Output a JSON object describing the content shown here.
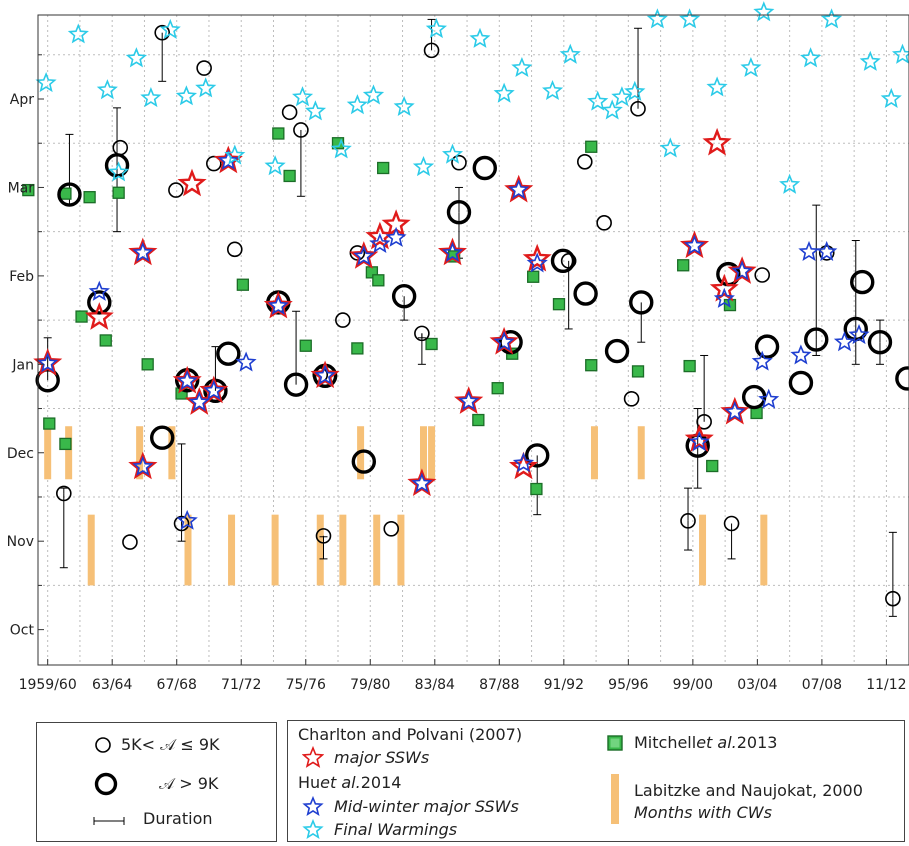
{
  "chart_data": {
    "type": "scatter",
    "title": "",
    "xlabel": "",
    "ylabel": "",
    "x_tick_labels": [
      "1959/60",
      "63/64",
      "67/68",
      "71/72",
      "75/76",
      "79/80",
      "83/84",
      "87/88",
      "91/92",
      "95/96",
      "99/00",
      "03/04",
      "07/08",
      "11/12"
    ],
    "x_tick_years": [
      1960,
      1964,
      1968,
      1972,
      1976,
      1980,
      1984,
      1988,
      1992,
      1996,
      2000,
      2004,
      2008,
      2012
    ],
    "y_tick_labels": [
      "Oct",
      "Nov",
      "Dec",
      "Jan",
      "Feb",
      "Mar",
      "Apr"
    ],
    "y_tick_months": [
      0,
      1,
      2,
      3,
      4,
      5,
      6
    ],
    "xlim": [
      1959.4,
      2013.4
    ],
    "ylim": [
      -0.4,
      6.95
    ],
    "grid": true,
    "y_units": "months since 1 Oct",
    "series": [
      {
        "name": "5K< 𝒜 ≤ 9K",
        "marker": "circle-thin",
        "points": [
          {
            "x": 1961,
            "y": 1.54,
            "lo": 0.7,
            "hi": 1.6
          },
          {
            "x": 1964.5,
            "y": 5.45
          },
          {
            "x": 1965.1,
            "y": 0.99
          },
          {
            "x": 1967.1,
            "y": 6.75,
            "hi": 6.2
          },
          {
            "x": 1967.95,
            "y": 4.97
          },
          {
            "x": 1968.3,
            "y": 1.2,
            "lo": 1.0,
            "hi": 2.1
          },
          {
            "x": 1969.7,
            "y": 6.35
          },
          {
            "x": 1970.3,
            "y": 5.27
          },
          {
            "x": 1971.6,
            "y": 4.3
          },
          {
            "x": 1975,
            "y": 5.85
          },
          {
            "x": 1975.7,
            "y": 5.65,
            "lo": 4.9
          },
          {
            "x": 1976.9,
            "y": 2.88
          },
          {
            "x": 1977.1,
            "y": 1.06,
            "lo": 0.8,
            "hi": 1.05
          },
          {
            "x": 1978.3,
            "y": 3.5
          },
          {
            "x": 1979.2,
            "y": 4.26
          },
          {
            "x": 1981.3,
            "y": 1.14
          },
          {
            "x": 1983.2,
            "y": 3.35,
            "lo": 3.0,
            "hi": 3.3
          },
          {
            "x": 1983.8,
            "y": 6.55,
            "hi": 6.9
          },
          {
            "x": 1985.5,
            "y": 5.28
          },
          {
            "x": 1992.3,
            "y": 4.17,
            "lo": 3.4
          },
          {
            "x": 1993.3,
            "y": 5.29
          },
          {
            "x": 1994.5,
            "y": 4.6
          },
          {
            "x": 1996.2,
            "y": 2.61
          },
          {
            "x": 1996.6,
            "y": 5.89,
            "hi": 6.8
          },
          {
            "x": 1999.7,
            "y": 1.23,
            "lo": 0.9,
            "hi": 1.6
          },
          {
            "x": 2000.7,
            "y": 2.35,
            "hi": 3.1
          },
          {
            "x": 2002.4,
            "y": 1.2,
            "lo": 0.8
          },
          {
            "x": 2004.3,
            "y": 4.01
          },
          {
            "x": 2008.3,
            "y": 4.26
          },
          {
            "x": 2012.4,
            "y": 0.35,
            "lo": 0.15,
            "hi": 1.1
          }
        ]
      },
      {
        "name": "𝒜 > 9K",
        "marker": "circle-thick",
        "points": [
          {
            "x": 1960,
            "y": 2.82,
            "hi": 3.3
          },
          {
            "x": 1961.35,
            "y": 4.92,
            "lo": 4.8,
            "hi": 5.6
          },
          {
            "x": 1963.2,
            "y": 3.7
          },
          {
            "x": 1964.3,
            "y": 5.25,
            "lo": 4.5,
            "hi": 5.9
          },
          {
            "x": 1967.1,
            "y": 2.17
          },
          {
            "x": 1968.65,
            "y": 2.82
          },
          {
            "x": 1970.4,
            "y": 2.7,
            "hi": 3.2
          },
          {
            "x": 1971.2,
            "y": 3.12
          },
          {
            "x": 1974.3,
            "y": 3.7
          },
          {
            "x": 1975.4,
            "y": 2.77,
            "hi": 3.6
          },
          {
            "x": 1977.2,
            "y": 2.87
          },
          {
            "x": 1979.6,
            "y": 1.9
          },
          {
            "x": 1982.1,
            "y": 3.77,
            "hi": 3.5
          },
          {
            "x": 1985.5,
            "y": 4.72,
            "lo": 4.2,
            "hi": 5.0
          },
          {
            "x": 1987.1,
            "y": 5.22
          },
          {
            "x": 1988.7,
            "y": 3.25
          },
          {
            "x": 1990.35,
            "y": 1.97,
            "lo": 1.3
          },
          {
            "x": 1991.95,
            "y": 4.17
          },
          {
            "x": 1993.35,
            "y": 3.8
          },
          {
            "x": 1995.3,
            "y": 3.15
          },
          {
            "x": 1996.8,
            "y": 3.7,
            "lo": 3.25
          },
          {
            "x": 2000.3,
            "y": 2.08,
            "lo": 1.6,
            "hi": 2.5
          },
          {
            "x": 2002.2,
            "y": 4.02
          },
          {
            "x": 2003.8,
            "y": 2.63
          },
          {
            "x": 2004.6,
            "y": 3.2
          },
          {
            "x": 2006.7,
            "y": 2.79
          },
          {
            "x": 2007.65,
            "y": 3.28,
            "lo": 3.1,
            "hi": 4.8
          },
          {
            "x": 2010.1,
            "y": 3.4,
            "lo": 3.0,
            "hi": 4.4
          },
          {
            "x": 2010.5,
            "y": 3.93
          },
          {
            "x": 2011.6,
            "y": 3.25,
            "lo": 3.0,
            "hi": 3.5
          },
          {
            "x": 2013.3,
            "y": 2.84
          }
        ]
      },
      {
        "name": "major SSWs",
        "marker": "star-red",
        "points": [
          {
            "x": 1960,
            "y": 3.01
          },
          {
            "x": 1963.2,
            "y": 3.53
          },
          {
            "x": 1965.9,
            "y": 4.26
          },
          {
            "x": 1965.9,
            "y": 1.84
          },
          {
            "x": 1968.65,
            "y": 2.81
          },
          {
            "x": 1968.95,
            "y": 5.04
          },
          {
            "x": 1969.4,
            "y": 2.57
          },
          {
            "x": 1970.3,
            "y": 2.7
          },
          {
            "x": 1971.2,
            "y": 5.3
          },
          {
            "x": 1974.3,
            "y": 3.66
          },
          {
            "x": 1977.2,
            "y": 2.87
          },
          {
            "x": 1979.6,
            "y": 4.22
          },
          {
            "x": 1980.6,
            "y": 4.44
          },
          {
            "x": 1981.6,
            "y": 4.58
          },
          {
            "x": 1983.2,
            "y": 1.65
          },
          {
            "x": 1985.1,
            "y": 4.26
          },
          {
            "x": 1986.1,
            "y": 2.58
          },
          {
            "x": 1988.3,
            "y": 3.25
          },
          {
            "x": 1989.2,
            "y": 4.97
          },
          {
            "x": 1989.5,
            "y": 1.84
          },
          {
            "x": 1990.35,
            "y": 4.19
          },
          {
            "x": 2000.1,
            "y": 4.34
          },
          {
            "x": 2000.4,
            "y": 2.15
          },
          {
            "x": 2001.95,
            "y": 3.85
          },
          {
            "x": 2002.6,
            "y": 2.46
          },
          {
            "x": 2003.05,
            "y": 4.05
          },
          {
            "x": 2001.5,
            "y": 5.5
          }
        ]
      },
      {
        "name": "Mid-winter major SSWs",
        "marker": "star-blue",
        "points": [
          {
            "x": 1960,
            "y": 3.01
          },
          {
            "x": 1963.2,
            "y": 3.82
          },
          {
            "x": 1965.9,
            "y": 4.26
          },
          {
            "x": 1965.9,
            "y": 1.84
          },
          {
            "x": 1968.65,
            "y": 2.81
          },
          {
            "x": 1968.65,
            "y": 1.23
          },
          {
            "x": 1969.4,
            "y": 2.57
          },
          {
            "x": 1970.3,
            "y": 2.7
          },
          {
            "x": 1971.2,
            "y": 5.3
          },
          {
            "x": 1972.3,
            "y": 3.02
          },
          {
            "x": 1974.3,
            "y": 3.66
          },
          {
            "x": 1977.2,
            "y": 2.87
          },
          {
            "x": 1979.6,
            "y": 4.22
          },
          {
            "x": 1980.6,
            "y": 4.36
          },
          {
            "x": 1981.6,
            "y": 4.43
          },
          {
            "x": 1983.2,
            "y": 1.65
          },
          {
            "x": 1985.1,
            "y": 4.26
          },
          {
            "x": 1986.1,
            "y": 2.58
          },
          {
            "x": 1988.3,
            "y": 3.25
          },
          {
            "x": 1989.2,
            "y": 4.97
          },
          {
            "x": 1989.5,
            "y": 1.88
          },
          {
            "x": 1990.35,
            "y": 4.14
          },
          {
            "x": 2000.1,
            "y": 4.34
          },
          {
            "x": 2000.4,
            "y": 2.12
          },
          {
            "x": 2001.95,
            "y": 3.74
          },
          {
            "x": 2002.6,
            "y": 2.46
          },
          {
            "x": 2003.05,
            "y": 4.05
          },
          {
            "x": 2004.3,
            "y": 3.03
          },
          {
            "x": 2004.7,
            "y": 2.6
          },
          {
            "x": 2006.7,
            "y": 3.1
          },
          {
            "x": 2007.2,
            "y": 4.27
          },
          {
            "x": 2008.3,
            "y": 4.27
          },
          {
            "x": 2009.4,
            "y": 3.25
          },
          {
            "x": 2010.3,
            "y": 3.33
          }
        ]
      },
      {
        "name": "Final Warmings",
        "marker": "star-cyan",
        "points": [
          {
            "x": 1959.9,
            "y": 6.18
          },
          {
            "x": 1961.9,
            "y": 6.73
          },
          {
            "x": 1963.7,
            "y": 6.1
          },
          {
            "x": 1964.4,
            "y": 5.17
          },
          {
            "x": 1965.5,
            "y": 6.46
          },
          {
            "x": 1966.4,
            "y": 6.01
          },
          {
            "x": 1967.6,
            "y": 6.78
          },
          {
            "x": 1968.6,
            "y": 6.03
          },
          {
            "x": 1969.8,
            "y": 6.12
          },
          {
            "x": 1971.6,
            "y": 5.36
          },
          {
            "x": 1974.1,
            "y": 5.24
          },
          {
            "x": 1975.8,
            "y": 6.02
          },
          {
            "x": 1976.6,
            "y": 5.86
          },
          {
            "x": 1978.2,
            "y": 5.43
          },
          {
            "x": 1979.2,
            "y": 5.93
          },
          {
            "x": 1980.2,
            "y": 6.04
          },
          {
            "x": 1982.1,
            "y": 5.91
          },
          {
            "x": 1983.3,
            "y": 5.23
          },
          {
            "x": 1984.1,
            "y": 6.79
          },
          {
            "x": 1985.1,
            "y": 5.37
          },
          {
            "x": 1986.8,
            "y": 6.68
          },
          {
            "x": 1988.3,
            "y": 6.06
          },
          {
            "x": 1989.4,
            "y": 6.35
          },
          {
            "x": 1991.3,
            "y": 6.09
          },
          {
            "x": 1992.4,
            "y": 6.5
          },
          {
            "x": 1994.1,
            "y": 5.97
          },
          {
            "x": 1995.0,
            "y": 5.87
          },
          {
            "x": 1995.6,
            "y": 6.02
          },
          {
            "x": 1996.4,
            "y": 6.08
          },
          {
            "x": 1997.8,
            "y": 6.9
          },
          {
            "x": 1998.6,
            "y": 5.44
          },
          {
            "x": 1999.8,
            "y": 6.9
          },
          {
            "x": 2001.5,
            "y": 6.13
          },
          {
            "x": 2003.6,
            "y": 6.35
          },
          {
            "x": 2004.4,
            "y": 6.98
          },
          {
            "x": 2006.0,
            "y": 5.03
          },
          {
            "x": 2007.3,
            "y": 6.46
          },
          {
            "x": 2008.6,
            "y": 6.9
          },
          {
            "x": 2011.0,
            "y": 6.42
          },
          {
            "x": 2012.3,
            "y": 6.0
          },
          {
            "x": 2013.0,
            "y": 6.5
          }
        ]
      },
      {
        "name": "Mitchell et al. 2013",
        "marker": "square-green",
        "points": [
          {
            "x": 1958.8,
            "y": 4.97
          },
          {
            "x": 1960.1,
            "y": 2.33
          },
          {
            "x": 1961.1,
            "y": 2.1
          },
          {
            "x": 1961.1,
            "y": 4.93
          },
          {
            "x": 1962.1,
            "y": 3.54
          },
          {
            "x": 1962.6,
            "y": 4.89
          },
          {
            "x": 1963.6,
            "y": 3.27
          },
          {
            "x": 1964.4,
            "y": 4.94
          },
          {
            "x": 1966.2,
            "y": 3.0
          },
          {
            "x": 1968.3,
            "y": 2.67
          },
          {
            "x": 1972.1,
            "y": 3.9
          },
          {
            "x": 1974.3,
            "y": 5.61
          },
          {
            "x": 1975.0,
            "y": 5.13
          },
          {
            "x": 1976.0,
            "y": 3.21
          },
          {
            "x": 1978.0,
            "y": 5.5
          },
          {
            "x": 1979.2,
            "y": 3.18
          },
          {
            "x": 1980.1,
            "y": 4.04
          },
          {
            "x": 1980.5,
            "y": 3.95
          },
          {
            "x": 1980.8,
            "y": 5.22
          },
          {
            "x": 1983.8,
            "y": 3.23
          },
          {
            "x": 1985.2,
            "y": 4.22
          },
          {
            "x": 1986.7,
            "y": 2.37
          },
          {
            "x": 1987.9,
            "y": 2.73
          },
          {
            "x": 1988.8,
            "y": 3.12
          },
          {
            "x": 1990.1,
            "y": 3.99
          },
          {
            "x": 1990.3,
            "y": 1.59
          },
          {
            "x": 1991.7,
            "y": 3.68
          },
          {
            "x": 1993.7,
            "y": 5.46
          },
          {
            "x": 1993.7,
            "y": 2.99
          },
          {
            "x": 1996.6,
            "y": 2.92
          },
          {
            "x": 1999.4,
            "y": 4.12
          },
          {
            "x": 1999.8,
            "y": 2.98
          },
          {
            "x": 2001.2,
            "y": 1.85
          },
          {
            "x": 2002.3,
            "y": 3.67
          },
          {
            "x": 2003.95,
            "y": 2.45
          }
        ]
      },
      {
        "name": "Months with CWs",
        "marker": "bar-orange",
        "bars": [
          {
            "x": 1960,
            "y0": 1.7,
            "y1": 2.3
          },
          {
            "x": 1961.3,
            "y0": 1.7,
            "y1": 2.3
          },
          {
            "x": 1962.7,
            "y0": 0.5,
            "y1": 1.3
          },
          {
            "x": 1965.7,
            "y0": 1.7,
            "y1": 2.3
          },
          {
            "x": 1967.7,
            "y0": 1.7,
            "y1": 2.3
          },
          {
            "x": 1968.7,
            "y0": 0.5,
            "y1": 1.3
          },
          {
            "x": 1971.4,
            "y0": 0.5,
            "y1": 1.3
          },
          {
            "x": 1974.1,
            "y0": 0.5,
            "y1": 1.3
          },
          {
            "x": 1976.9,
            "y0": 0.5,
            "y1": 1.3
          },
          {
            "x": 1978.3,
            "y0": 0.5,
            "y1": 1.3
          },
          {
            "x": 1979.4,
            "y0": 1.7,
            "y1": 2.3
          },
          {
            "x": 1980.4,
            "y0": 0.5,
            "y1": 1.3
          },
          {
            "x": 1981.9,
            "y0": 0.5,
            "y1": 1.3
          },
          {
            "x": 1983.3,
            "y0": 1.7,
            "y1": 2.3
          },
          {
            "x": 1983.8,
            "y0": 1.7,
            "y1": 2.3
          },
          {
            "x": 1993.9,
            "y0": 1.7,
            "y1": 2.3
          },
          {
            "x": 1996.8,
            "y0": 1.7,
            "y1": 2.3
          },
          {
            "x": 2000.6,
            "y0": 0.5,
            "y1": 1.3
          },
          {
            "x": 2004.4,
            "y0": 0.5,
            "y1": 1.3
          }
        ]
      }
    ]
  },
  "legend_left": {
    "thin_label": "5K< 𝒜 ≤ 9K",
    "thick_label": "𝒜 > 9K",
    "duration_label": "Duration"
  },
  "legend_right": {
    "cp_source": "Charlton and Polvani (2007)",
    "cp_series": "major SSWs",
    "hu_prefix": "Hu ",
    "hu_etal": "et al.",
    "hu_year": " 2014",
    "hu_series1": "Mid-winter major SSWs",
    "hu_series2": "Final Warmings",
    "mitchell_prefix": "Mitchell ",
    "mitchell_etal": "et al.",
    "mitchell_year": " 2013",
    "labitzke_source": "Labitzke and Naujokat, 2000",
    "labitzke_series": "Months with CWs"
  },
  "colors": {
    "red_star": "#e01b1b",
    "blue_star": "#1f3fd0",
    "cyan_star": "#2ccbe8",
    "green_square": "#39b84a",
    "orange_bar": "#f6c077",
    "grid": "#bdbdbd"
  }
}
